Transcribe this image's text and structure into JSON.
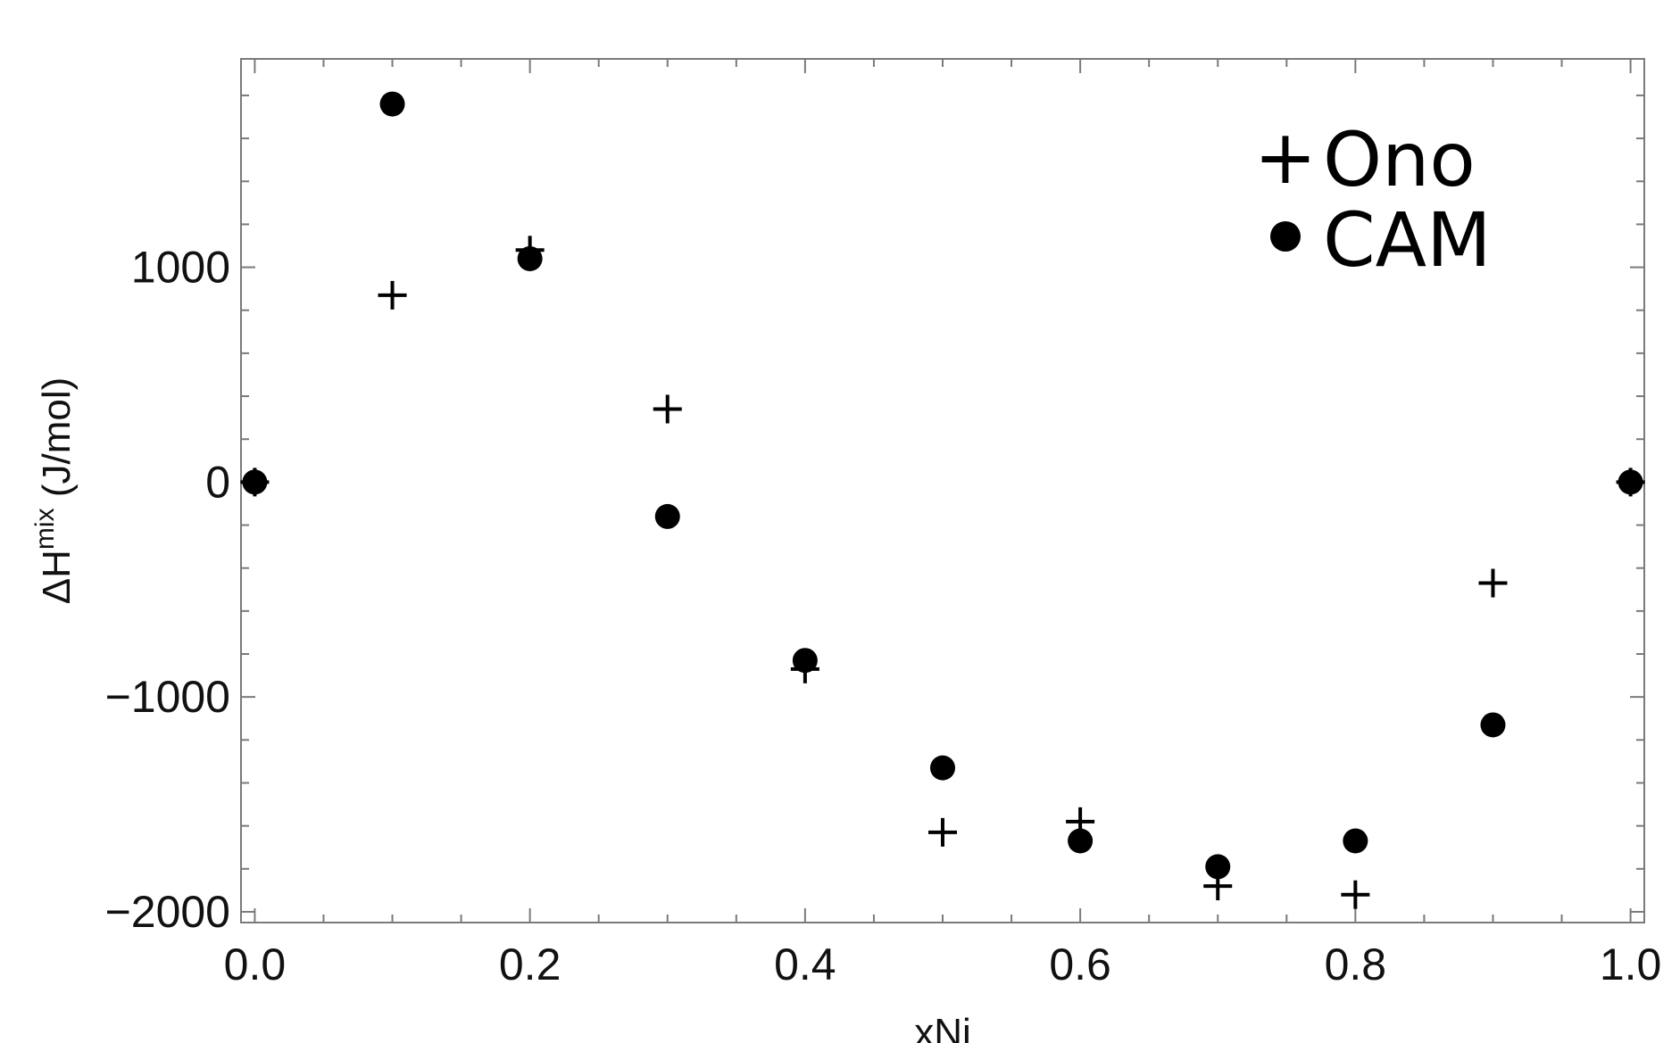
{
  "chart_data": {
    "type": "scatter",
    "xlabel": "xNi",
    "ylabel": {
      "prefix": "ΔH",
      "superscript": "mix",
      "suffix": " (J/mol)"
    },
    "xlim": [
      -0.01,
      1.01
    ],
    "ylim": [
      -2050,
      1970
    ],
    "x_ticks": [
      0.0,
      0.2,
      0.4,
      0.6,
      0.8,
      1.0
    ],
    "x_tick_labels": [
      "0.0",
      "0.2",
      "0.4",
      "0.6",
      "0.8",
      "1.0"
    ],
    "y_ticks": [
      -2000,
      -1000,
      0,
      1000
    ],
    "y_tick_labels": [
      "−2000",
      "−1000",
      "0",
      "1000"
    ],
    "grid": false,
    "legend_position": "top-right",
    "series": [
      {
        "name": "Ono",
        "marker": "plus",
        "color": "#000000",
        "x": [
          0.0,
          0.1,
          0.2,
          0.3,
          0.4,
          0.5,
          0.6,
          0.7,
          0.8,
          0.9,
          1.0
        ],
        "y": [
          0,
          870,
          1080,
          340,
          -870,
          -1630,
          -1580,
          -1880,
          -1920,
          -470,
          0
        ]
      },
      {
        "name": "CAM",
        "marker": "circle",
        "color": "#000000",
        "x": [
          0.0,
          0.1,
          0.2,
          0.3,
          0.4,
          0.5,
          0.6,
          0.7,
          0.8,
          0.9,
          1.0
        ],
        "y": [
          0,
          1760,
          1040,
          -160,
          -830,
          -1330,
          -1670,
          -1790,
          -1670,
          -1130,
          0
        ]
      }
    ]
  },
  "legend": {
    "plus_glyph": "+",
    "circle_glyph": "●"
  }
}
